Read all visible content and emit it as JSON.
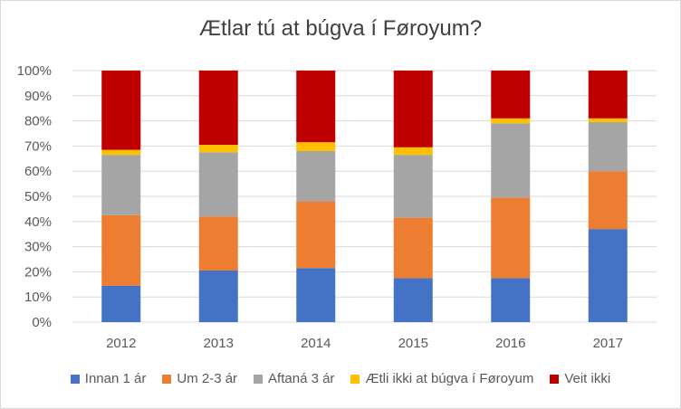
{
  "chart_data": {
    "type": "bar",
    "stacked": true,
    "title": "Ætlar tú at búgva í Føroyum?",
    "categories": [
      "2012",
      "2013",
      "2014",
      "2015",
      "2016",
      "2017"
    ],
    "ylim": [
      0,
      1
    ],
    "y_ticks": [
      "0%",
      "10%",
      "20%",
      "30%",
      "40%",
      "50%",
      "60%",
      "70%",
      "80%",
      "90%",
      "100%"
    ],
    "grid": true,
    "legend_position": "bottom",
    "series": [
      {
        "name": "Innan 1 ár",
        "color": "#4472c4",
        "values": [
          0.145,
          0.205,
          0.215,
          0.175,
          0.175,
          0.37
        ]
      },
      {
        "name": "Um 2-3 ár",
        "color": "#ed7d31",
        "values": [
          0.28,
          0.215,
          0.265,
          0.24,
          0.32,
          0.23
        ]
      },
      {
        "name": "Aftaná 3 ár",
        "color": "#a5a5a5",
        "values": [
          0.24,
          0.255,
          0.2,
          0.25,
          0.295,
          0.195
        ]
      },
      {
        "name": "Ætli ikki at búgva í Føroyum",
        "color": "#ffc000",
        "values": [
          0.02,
          0.03,
          0.035,
          0.03,
          0.02,
          0.015
        ]
      },
      {
        "name": "Veit ikki",
        "color": "#c00000",
        "values": [
          0.315,
          0.295,
          0.285,
          0.305,
          0.19,
          0.19
        ]
      }
    ]
  }
}
